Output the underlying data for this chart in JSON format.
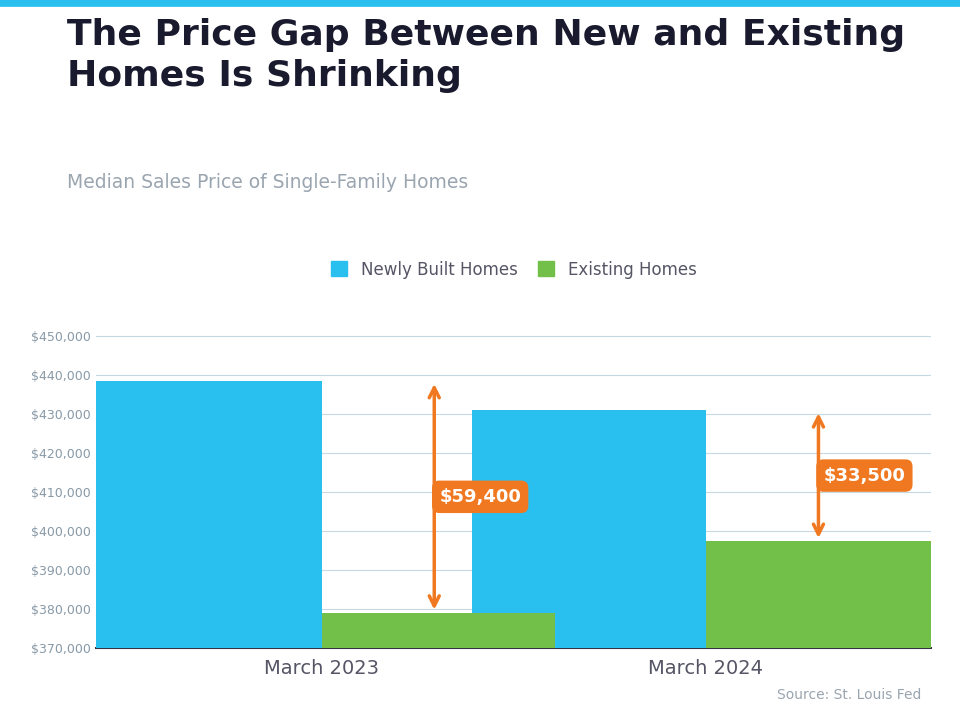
{
  "title": "The Price Gap Between New and Existing\nHomes Is Shrinking",
  "subtitle": "Median Sales Price of Single-Family Homes",
  "source": "Source: St. Louis Fed",
  "categories": [
    "March 2023",
    "March 2024"
  ],
  "newly_built": [
    438500,
    431000
  ],
  "existing": [
    379100,
    397500
  ],
  "gap_labels": [
    "$59,400",
    "$33,500"
  ],
  "bar_width": 0.28,
  "newly_built_color": "#29C0F0",
  "existing_color": "#72C04A",
  "arrow_color": "#F07820",
  "gap_box_color": "#F07820",
  "gap_text_color": "#FFFFFF",
  "title_color": "#1A1A2E",
  "subtitle_color": "#9AA5B0",
  "source_color": "#9AA5B0",
  "grid_color": "#C8D8E0",
  "background_color": "#FFFFFF",
  "ylim": [
    370000,
    455000
  ],
  "yticks": [
    370000,
    380000,
    390000,
    400000,
    410000,
    420000,
    430000,
    440000,
    450000
  ],
  "accent_line_color": "#29C0F0",
  "legend_labels": [
    "Newly Built Homes",
    "Existing Homes"
  ],
  "group_centers": [
    0.27,
    0.73
  ]
}
